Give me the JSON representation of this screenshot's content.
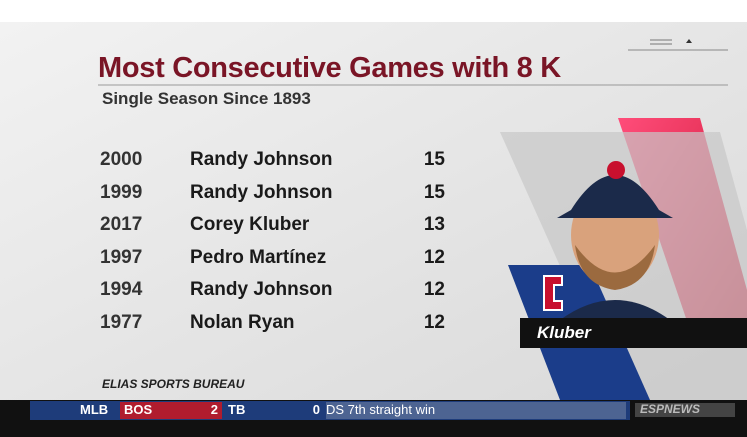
{
  "header": {
    "title": "Most Consecutive Games with 8 K",
    "subtitle": "Single Season Since 1893"
  },
  "table": {
    "rows": [
      [
        2000,
        "Randy Johnson",
        15
      ],
      [
        1999,
        "Randy Johnson",
        15
      ],
      [
        2017,
        "Corey Kluber",
        13
      ],
      [
        1997,
        "Pedro Martínez",
        12
      ],
      [
        1994,
        "Randy Johnson",
        12
      ],
      [
        1977,
        "Nolan Ryan",
        12
      ]
    ]
  },
  "source": "ELIAS SPORTS BUREAU",
  "player": {
    "name": "Kluber"
  },
  "ticker": {
    "league": "MLB",
    "away_team": "BOS",
    "away_score": 2,
    "home_team": "TB",
    "home_score": 0,
    "headline": "DS 7th straight win",
    "network": "ESPNEWS"
  }
}
